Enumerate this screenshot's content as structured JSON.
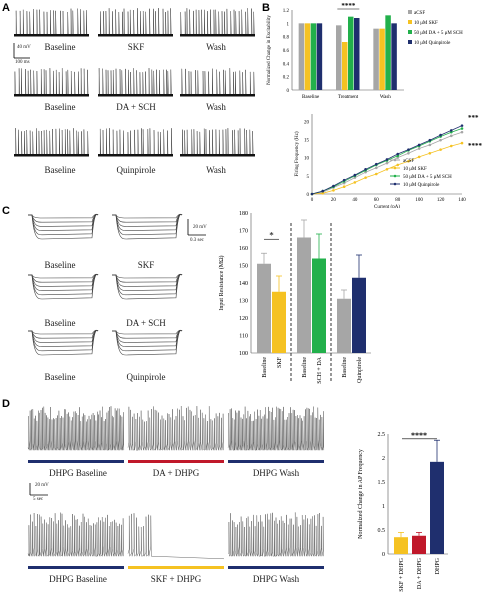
{
  "panel_letters": [
    "A",
    "B",
    "C",
    "D"
  ],
  "panel_A": {
    "rows": [
      [
        "Baseline",
        "SKF",
        "Wash"
      ],
      [
        "Baseline",
        "DA + SCH",
        "Wash"
      ],
      [
        "Baseline",
        "Quinpirole",
        "Wash"
      ]
    ],
    "scale_mv": "40 mV",
    "scale_ms": "100 ms"
  },
  "panel_C": {
    "rows": [
      [
        "Baseline",
        "SKF"
      ],
      [
        "Baseline",
        "DA + SCH"
      ],
      [
        "Baseline",
        "Quinpirole"
      ]
    ],
    "scale_mv": "20 mV",
    "scale_sec": "0.3 sec"
  },
  "panel_D": {
    "row1": [
      "DHPG Baseline",
      "DA + DHPG",
      "DHPG Wash"
    ],
    "row2": [
      "DHPG Baseline",
      "SKF + DHPG",
      "DHPG Wash"
    ],
    "scale_mv": "20 mV",
    "scale_sec": "5 sec"
  },
  "colors": {
    "acsf": "#a6a6a6",
    "skf": "#f5c222",
    "da_sch": "#22b04b",
    "quinpirole": "#1f2f6e",
    "dapair_red": "#c0182a"
  },
  "chart_data": [
    {
      "id": "B_top",
      "type": "bar",
      "ylabel": "Normalized Change in Excitability",
      "ylim": [
        0,
        1.2
      ],
      "yticks": [
        "0",
        "0.2",
        "0.4",
        "0.6",
        "0.8",
        "1",
        "1.2"
      ],
      "categories": [
        "Baseline",
        "Treatment",
        "Wash"
      ],
      "series": [
        {
          "name": "aCSF",
          "values": [
            1.0,
            0.97,
            0.92
          ]
        },
        {
          "name": "10 μM SKF",
          "values": [
            1.0,
            0.72,
            0.92
          ]
        },
        {
          "name": "50 μM DA + 5 μM SCH",
          "values": [
            1.0,
            1.1,
            1.12
          ]
        },
        {
          "name": "10 μM Quinpirole",
          "values": [
            1.0,
            1.08,
            1.0
          ]
        }
      ],
      "annotations": [
        "****"
      ],
      "legend": "right"
    },
    {
      "id": "B_bottom",
      "type": "line",
      "xlabel": "Current (pA)",
      "ylabel": "Firing Frequency (Hz)",
      "x": [
        0,
        10,
        20,
        30,
        40,
        50,
        60,
        70,
        80,
        90,
        100,
        110,
        120,
        130,
        140
      ],
      "xticks": [
        "0",
        "20",
        "40",
        "60",
        "80",
        "100",
        "120",
        "140"
      ],
      "ylim": [
        0,
        22
      ],
      "yticks": [
        "0",
        "5",
        "10",
        "15",
        "20"
      ],
      "series": [
        {
          "name": "aCSF",
          "values": [
            0,
            0.5,
            1.8,
            3,
            4.5,
            6,
            7.2,
            8.5,
            10,
            11.2,
            12.5,
            13.5,
            14.8,
            16,
            17
          ]
        },
        {
          "name": "10 μM SKF",
          "values": [
            0,
            0.2,
            1,
            2,
            3.2,
            4.5,
            5.5,
            6.8,
            8,
            9,
            10.2,
            11.2,
            12.2,
            13.2,
            14
          ]
        },
        {
          "name": "50 μM DA + 5 μM SCH",
          "values": [
            0,
            0.8,
            2,
            3.5,
            5,
            6.5,
            8,
            9.2,
            10.5,
            12,
            13.2,
            14.5,
            15.8,
            17,
            18
          ]
        },
        {
          "name": "10 μM Quinpirole",
          "values": [
            0,
            0.8,
            2.2,
            3.8,
            5.2,
            6.8,
            8.2,
            9.5,
            11,
            12.2,
            13.5,
            14.8,
            16.2,
            17.5,
            18.8
          ]
        }
      ],
      "annotations": [
        "***",
        "****"
      ],
      "legend": "bottom-right"
    },
    {
      "id": "C",
      "type": "bar",
      "ylabel": "Input Resistance (MΩ)",
      "ylim": [
        100,
        180
      ],
      "yticks": [
        "100",
        "110",
        "120",
        "130",
        "140",
        "150",
        "160",
        "170",
        "180"
      ],
      "categories": [
        "Baseline",
        "SKF",
        "Baseline",
        "SCH + DA",
        "Baseline",
        "Quinpirole"
      ],
      "values": [
        151,
        135,
        166,
        154,
        131,
        143
      ],
      "errors": [
        6,
        9,
        10,
        14,
        5,
        13
      ],
      "annotations": [
        "*"
      ]
    },
    {
      "id": "D",
      "type": "bar",
      "ylabel": "Normalized Change in AP Frequency",
      "ylim": [
        0,
        2.5
      ],
      "yticks": [
        "0",
        "0.5",
        "1",
        "1.5",
        "2",
        "2.5"
      ],
      "categories": [
        "SKF + DHPG",
        "DA + DHPG",
        "DHPG"
      ],
      "values": [
        0.35,
        0.38,
        1.92
      ],
      "errors": [
        0.1,
        0.07,
        0.45
      ],
      "annotations": [
        "****"
      ]
    }
  ]
}
